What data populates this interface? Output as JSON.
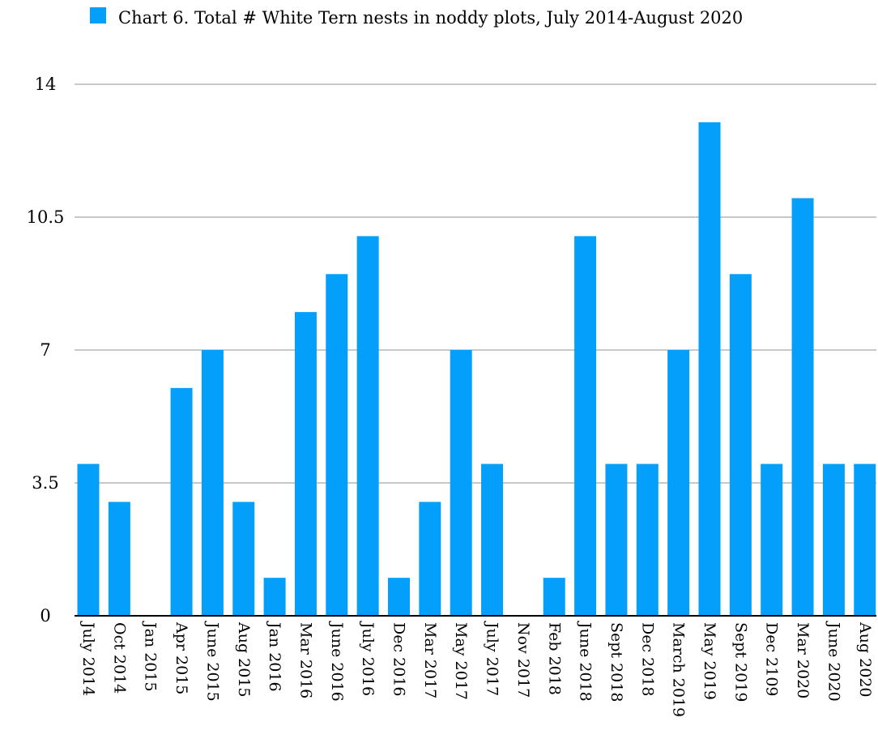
{
  "colors": {
    "bar": "#049ffa",
    "grid": "#c8c8c8",
    "axis": "#000000",
    "background": "#ffffff"
  },
  "chart_data": {
    "type": "bar",
    "title": "",
    "xlabel": "",
    "ylabel": "",
    "grid": true,
    "legend_position": "top-center",
    "ylim": [
      0,
      14
    ],
    "yticks": [
      "0",
      "3.5",
      "7",
      "10.5",
      "14"
    ],
    "categories": [
      "July 2014",
      "Oct 2014",
      "Jan 2015",
      "Apr 2015",
      "June 2015",
      "Aug 2015",
      "Jan 2016",
      "Mar 2016",
      "June 2016",
      "July 2016",
      "Dec 2016",
      "Mar 2017",
      "May 2017",
      "July 2017",
      "Nov 2017",
      "Feb 2018",
      "June 2018",
      "Sept 2018",
      "Dec 2018",
      "March 2019",
      "May 2019",
      "Sept 2019",
      "Dec 2109",
      "Mar 2020",
      "June 2020",
      "Aug 2020"
    ],
    "series": [
      {
        "name": "Chart 6.  Total # White Tern nests in noddy plots, July 2014-August 2020",
        "values": [
          4,
          3,
          0,
          6,
          7,
          3,
          1,
          8,
          9,
          10,
          1,
          3,
          7,
          4,
          0,
          1,
          10,
          4,
          4,
          7,
          13,
          9,
          4,
          11,
          4,
          4
        ]
      }
    ]
  }
}
